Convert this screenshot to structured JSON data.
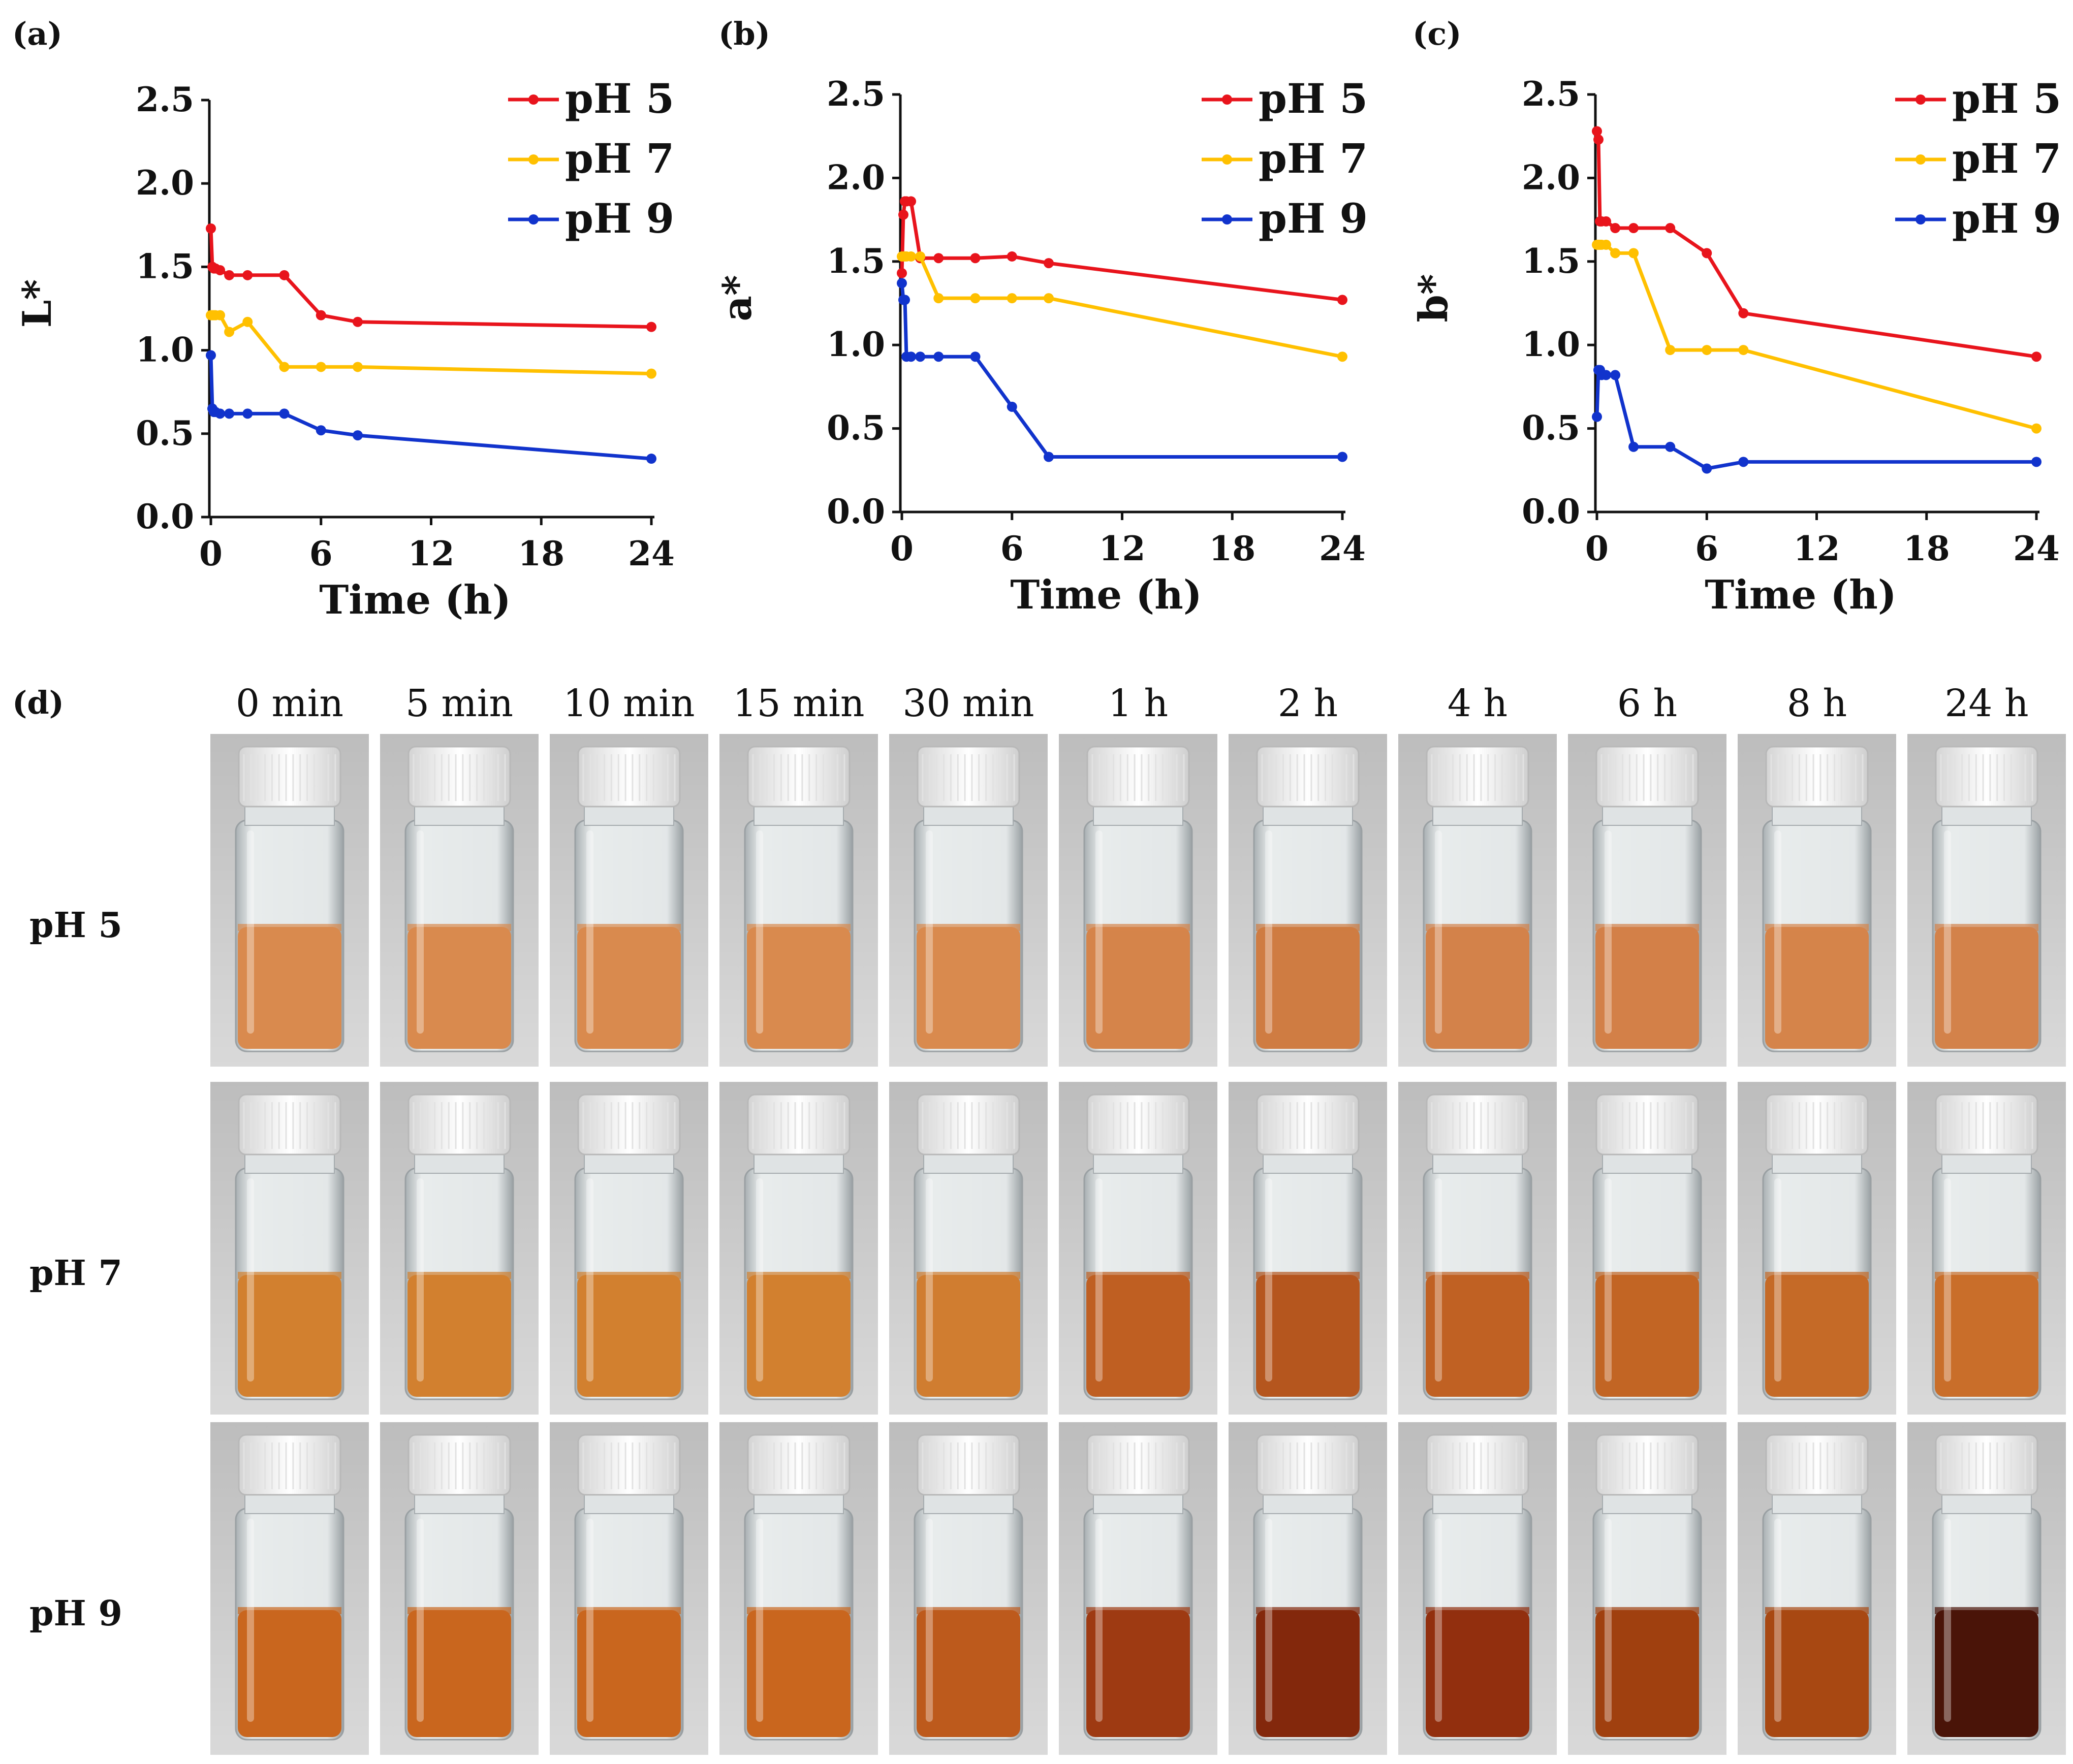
{
  "chart_data": [
    {
      "type": "line",
      "panel": "(a)",
      "ylabel": "L*",
      "xlabel": "Time (h)",
      "ylim": [
        0,
        2.5
      ],
      "yticks": [
        "0.0",
        "0.5",
        "1.0",
        "1.5",
        "2.0",
        "2.5"
      ],
      "xticks": [
        "0",
        "6",
        "12",
        "18",
        "24"
      ],
      "x": [
        0,
        0.083,
        0.167,
        0.25,
        0.5,
        1,
        2,
        4,
        6,
        8,
        24
      ],
      "series": [
        {
          "name": "pH 5",
          "color": "#e8141c",
          "values": [
            1.73,
            1.5,
            1.49,
            1.49,
            1.48,
            1.45,
            1.45,
            1.45,
            1.21,
            1.17,
            1.14
          ]
        },
        {
          "name": "pH 7",
          "color": "#ffc000",
          "values": [
            1.21,
            1.21,
            1.21,
            1.21,
            1.21,
            1.11,
            1.17,
            0.9,
            0.9,
            0.9,
            0.86
          ]
        },
        {
          "name": "pH 9",
          "color": "#1133cc",
          "values": [
            0.97,
            0.65,
            0.63,
            0.63,
            0.62,
            0.62,
            0.62,
            0.62,
            0.52,
            0.49,
            0.35
          ]
        }
      ]
    },
    {
      "type": "line",
      "panel": "(b)",
      "ylabel": "a*",
      "xlabel": "Time (h)",
      "ylim": [
        0,
        2.5
      ],
      "yticks": [
        "0.0",
        "0.5",
        "1.0",
        "1.5",
        "2.0",
        "2.5"
      ],
      "xticks": [
        "0",
        "6",
        "12",
        "18",
        "24"
      ],
      "x": [
        0,
        0.083,
        0.167,
        0.25,
        0.5,
        1,
        2,
        4,
        6,
        8,
        24
      ],
      "series": [
        {
          "name": "pH 5",
          "color": "#e8141c",
          "values": [
            1.43,
            1.78,
            1.86,
            1.86,
            1.86,
            1.52,
            1.52,
            1.52,
            1.53,
            1.49,
            1.27
          ]
        },
        {
          "name": "pH 7",
          "color": "#ffc000",
          "values": [
            1.53,
            1.53,
            1.53,
            1.53,
            1.53,
            1.53,
            1.28,
            1.28,
            1.28,
            1.28,
            0.93
          ]
        },
        {
          "name": "pH 9",
          "color": "#1133cc",
          "values": [
            1.37,
            1.27,
            1.27,
            0.93,
            0.93,
            0.93,
            0.93,
            0.93,
            0.63,
            0.33,
            0.33
          ]
        }
      ]
    },
    {
      "type": "line",
      "panel": "(c)",
      "ylabel": "b*",
      "xlabel": "Time (h)",
      "ylim": [
        0,
        2.5
      ],
      "yticks": [
        "0.0",
        "0.5",
        "1.0",
        "1.5",
        "2.0",
        "2.5"
      ],
      "xticks": [
        "0",
        "6",
        "12",
        "18",
        "24"
      ],
      "x": [
        0,
        0.083,
        0.167,
        0.25,
        0.5,
        1,
        2,
        4,
        6,
        8,
        24
      ],
      "series": [
        {
          "name": "pH 5",
          "color": "#e8141c",
          "values": [
            2.28,
            2.23,
            1.74,
            1.74,
            1.74,
            1.7,
            1.7,
            1.7,
            1.55,
            1.19,
            0.93
          ]
        },
        {
          "name": "pH 7",
          "color": "#ffc000",
          "values": [
            1.6,
            1.6,
            1.6,
            1.6,
            1.6,
            1.55,
            1.55,
            0.97,
            0.97,
            0.97,
            0.5
          ]
        },
        {
          "name": "pH 9",
          "color": "#1133cc",
          "values": [
            0.57,
            0.85,
            0.85,
            0.82,
            0.82,
            0.82,
            0.39,
            0.39,
            0.26,
            0.3,
            0.3
          ]
        }
      ]
    }
  ],
  "photos": {
    "panel": "(d)",
    "columns": [
      "0 min",
      "5 min",
      "10 min",
      "15 min",
      "30 min",
      "1 h",
      "2 h",
      "4 h",
      "6 h",
      "8 h",
      "24 h"
    ],
    "rows": [
      {
        "label": "pH 5",
        "liquid_colors": [
          "#d98a4e",
          "#d98a4e",
          "#d98a4e",
          "#d98a4e",
          "#d98a4e",
          "#d5844a",
          "#cf7c42",
          "#d3824a",
          "#d38048",
          "#d5844a",
          "#d3824a"
        ]
      },
      {
        "label": "pH 7",
        "liquid_colors": [
          "#d2802f",
          "#d2802f",
          "#d2802f",
          "#d2802f",
          "#d07d30",
          "#bf5f22",
          "#b5561e",
          "#c06123",
          "#c26524",
          "#c56a27",
          "#c96e2a"
        ]
      },
      {
        "label": "pH 9",
        "liquid_colors": [
          "#c9661e",
          "#c9661e",
          "#c9661e",
          "#c9661e",
          "#bd5a1c",
          "#9e3a12",
          "#83280c",
          "#922f0e",
          "#a0400f",
          "#a84812",
          "#4a1408"
        ]
      }
    ]
  }
}
